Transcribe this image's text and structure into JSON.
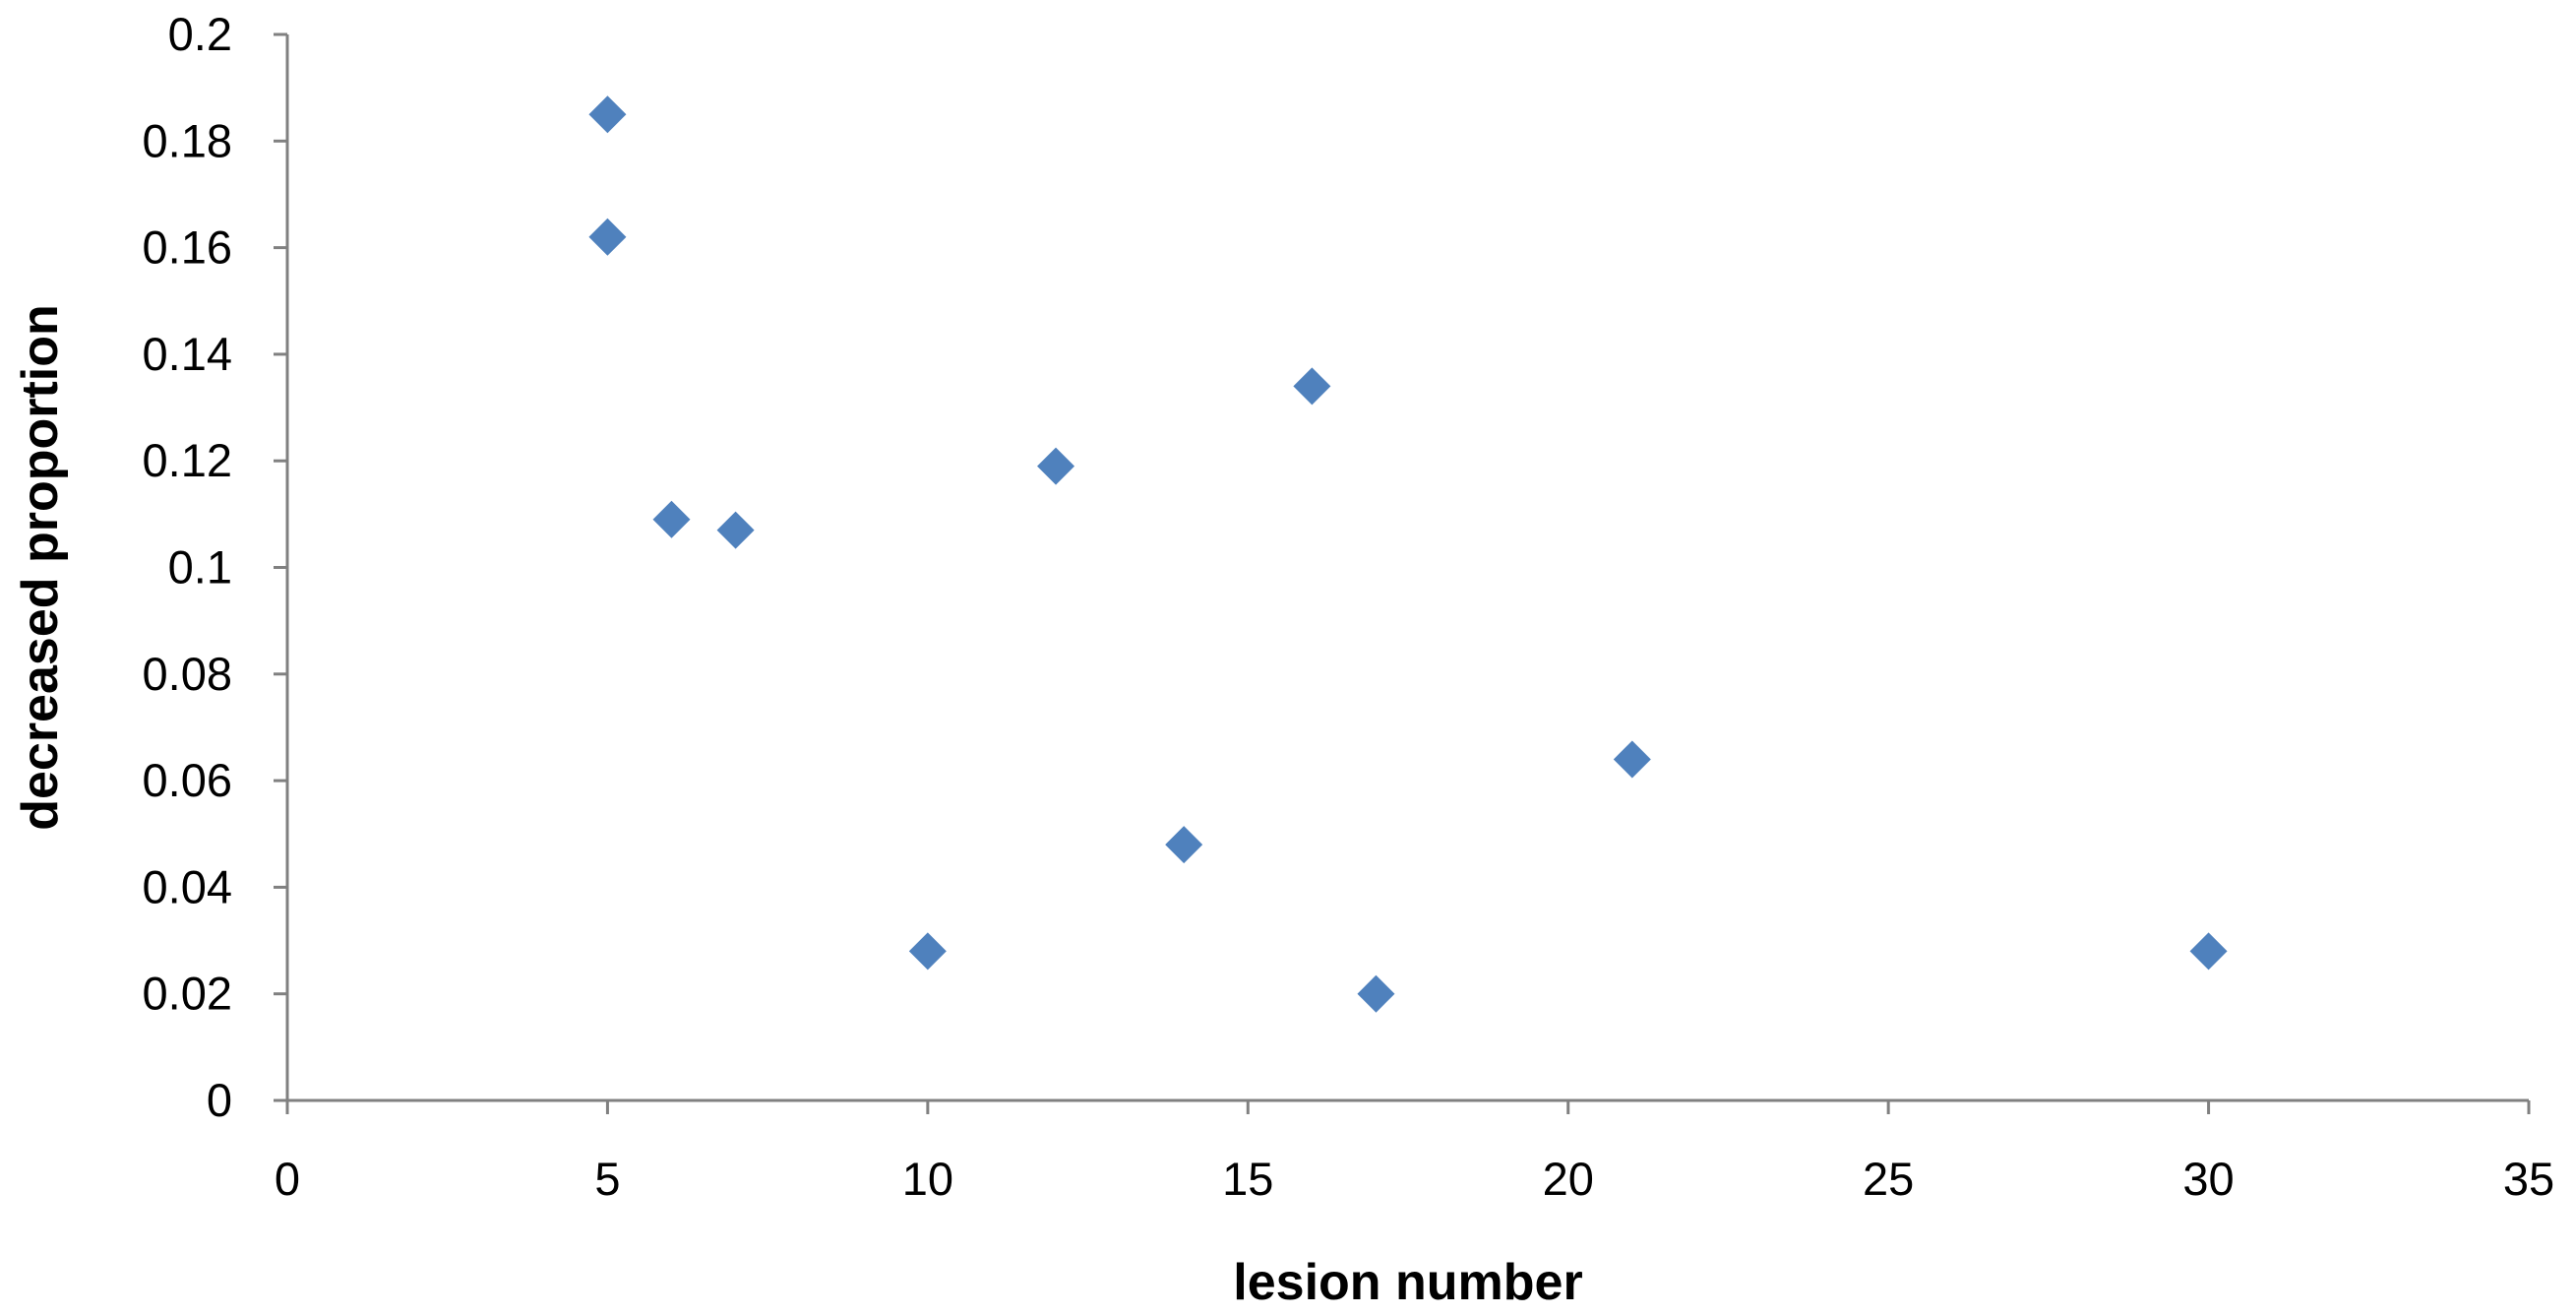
{
  "chart_data": {
    "type": "scatter",
    "title": "",
    "xlabel": "lesion number",
    "ylabel": "decreased proportion",
    "xlim": [
      0,
      35
    ],
    "ylim": [
      0,
      0.2
    ],
    "x_ticks": [
      "0",
      "5",
      "10",
      "15",
      "20",
      "25",
      "30",
      "35"
    ],
    "y_ticks": [
      "0",
      "0.02",
      "0.04",
      "0.06",
      "0.08",
      "0.1",
      "0.12",
      "0.14",
      "0.16",
      "0.18",
      "0.2"
    ],
    "x_tick_values": [
      0,
      5,
      10,
      15,
      20,
      25,
      30,
      35
    ],
    "y_tick_values": [
      0,
      0.02,
      0.04,
      0.06,
      0.08,
      0.1,
      0.12,
      0.14,
      0.16,
      0.18,
      0.2
    ],
    "grid": false,
    "legend": "none",
    "marker": "diamond",
    "marker_color": "#4F81BD",
    "axis_color": "#808080",
    "series": [
      {
        "points": [
          {
            "x": 5,
            "y": 0.185
          },
          {
            "x": 5,
            "y": 0.162
          },
          {
            "x": 6,
            "y": 0.109
          },
          {
            "x": 7,
            "y": 0.107
          },
          {
            "x": 10,
            "y": 0.028
          },
          {
            "x": 12,
            "y": 0.119
          },
          {
            "x": 14,
            "y": 0.048
          },
          {
            "x": 16,
            "y": 0.134
          },
          {
            "x": 17,
            "y": 0.02
          },
          {
            "x": 21,
            "y": 0.064
          },
          {
            "x": 30,
            "y": 0.028
          }
        ]
      }
    ]
  }
}
